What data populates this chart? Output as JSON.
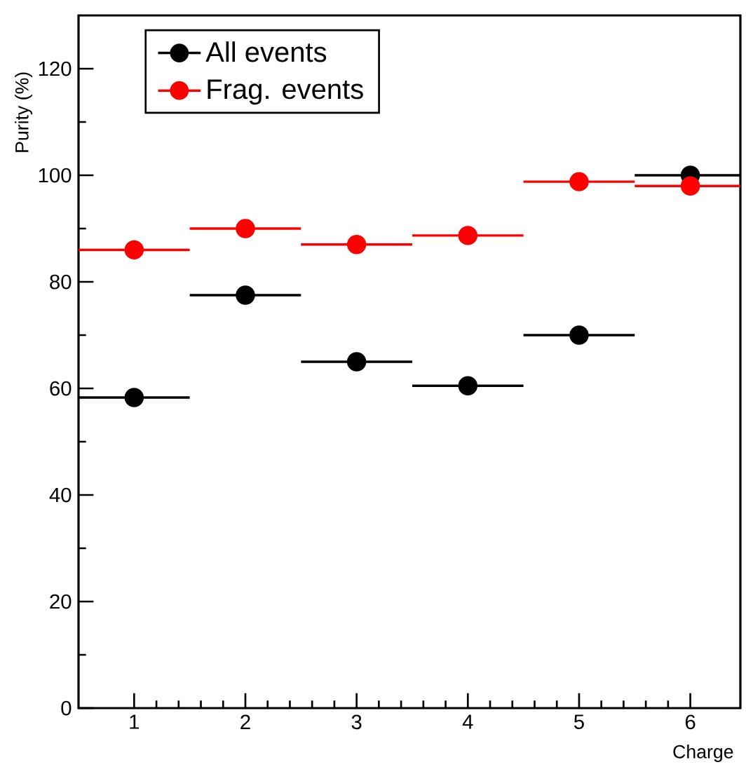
{
  "chart_data": {
    "type": "scatter",
    "xlabel": "Charge",
    "ylabel": "Purity (%)",
    "x": [
      1,
      2,
      3,
      4,
      5,
      6
    ],
    "series": [
      {
        "name": "All events",
        "color": "#000000",
        "values": [
          58.3,
          77.5,
          65,
          60.5,
          70,
          100
        ],
        "xerrors": [
          0.5,
          0.5,
          0.5,
          0.5,
          0.5,
          0.5
        ]
      },
      {
        "name": "Frag. events",
        "color": "#ff0000",
        "values": [
          86,
          90,
          87,
          88.7,
          98.8,
          98
        ],
        "xerrors": [
          0.5,
          0.5,
          0.5,
          0.5,
          0.5,
          0.5
        ]
      }
    ],
    "xlim": [
      0.5,
      6.45
    ],
    "ylim": [
      0,
      130
    ],
    "xticks": [
      1,
      2,
      3,
      4,
      5,
      6
    ],
    "yticks": [
      0,
      20,
      40,
      60,
      80,
      100,
      120
    ],
    "marker": "circle",
    "legend": "top left",
    "grid": false
  }
}
